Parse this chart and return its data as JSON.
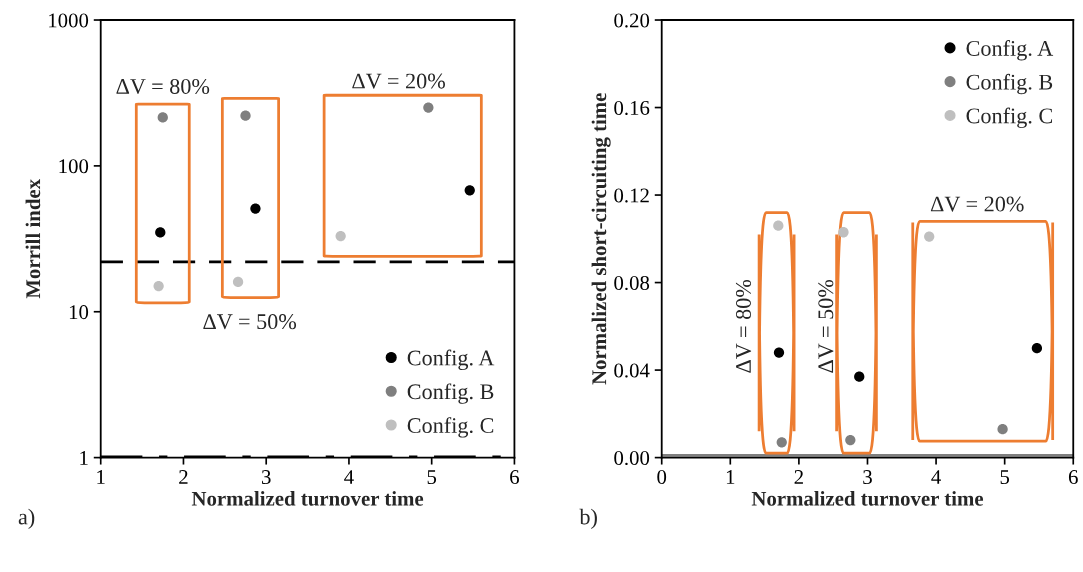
{
  "chart_data": [
    {
      "type": "scatter",
      "xlabel": "Normalized turnover time",
      "ylabel": "Morrill index",
      "log": "y",
      "xlim": [
        1,
        6
      ],
      "xticks": [
        1,
        2,
        3,
        4,
        5,
        6
      ],
      "ylim": [
        1,
        1000
      ],
      "yticks": [
        1,
        10,
        100,
        1000
      ],
      "grid": false,
      "legend": "bottom right",
      "marker": "circle",
      "series": [
        {
          "name": "Config. A",
          "color": "#000000",
          "x": [
            1.72,
            2.87,
            5.46
          ],
          "values": [
            35,
            51,
            68
          ]
        },
        {
          "name": "Config. B",
          "color": "#7f7f7f",
          "x": [
            1.75,
            2.75,
            4.96
          ],
          "values": [
            215,
            221,
            251
          ]
        },
        {
          "name": "Config. C",
          "color": "#bfbfbf",
          "x": [
            1.7,
            2.66,
            3.9
          ],
          "values": [
            15,
            16,
            33
          ]
        }
      ],
      "ref_lines": [
        {
          "axis": "y",
          "value": 22,
          "line_style": "dashed",
          "color": "#000000"
        },
        {
          "axis": "y",
          "value": 1,
          "line_style": "dashdot",
          "color": "#000000"
        }
      ],
      "annotations": [
        "ΔV = 80%",
        "ΔV = 50%",
        "ΔV = 20%",
        "a)"
      ]
    },
    {
      "type": "scatter",
      "xlabel": "Normalized turnover time",
      "ylabel": "Normalized short-circuiting time",
      "xlim": [
        0,
        6
      ],
      "xticks": [
        0,
        1,
        2,
        3,
        4,
        5,
        6
      ],
      "ylim": [
        0,
        0.2
      ],
      "yticks": [
        {
          "value": 0,
          "label": "0.00"
        },
        {
          "value": 0.04,
          "label": "0.04"
        },
        {
          "value": 0.08,
          "label": "0.08"
        },
        {
          "value": 0.12,
          "label": "0.12"
        },
        {
          "value": 0.16,
          "label": "0.16"
        },
        {
          "value": 0.2,
          "label": "0.20"
        }
      ],
      "grid": false,
      "legend": "top right",
      "marker": "circle",
      "series": [
        {
          "name": "Config. A",
          "color": "#000000",
          "x": [
            1.71,
            2.88,
            5.47
          ],
          "values": [
            0.048,
            0.037,
            0.05
          ]
        },
        {
          "name": "Config. B",
          "color": "#7f7f7f",
          "x": [
            1.75,
            2.75,
            4.97
          ],
          "values": [
            0.007,
            0.008,
            0.013
          ]
        },
        {
          "name": "Config. C",
          "color": "#bfbfbf",
          "x": [
            1.7,
            2.65,
            3.9
          ],
          "values": [
            0.106,
            0.103,
            0.101
          ]
        }
      ],
      "ref_lines": [
        {
          "axis": "y",
          "value": 0.001,
          "line_style": "solid",
          "color": "#7f7f7f"
        }
      ],
      "annotations": [
        "ΔV = 80%",
        "ΔV = 50%",
        "ΔV = 20%",
        "b)"
      ]
    }
  ]
}
